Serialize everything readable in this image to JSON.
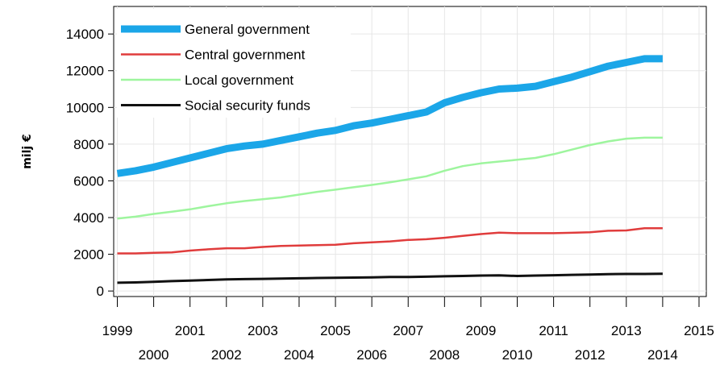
{
  "chart_data": {
    "type": "line",
    "title": "",
    "xlabel": "",
    "ylabel": "milj €",
    "xlim": [
      1998.9,
      2015.2
    ],
    "ylim": [
      -300,
      15500
    ],
    "x_ticks": [
      1999,
      2000,
      2001,
      2002,
      2003,
      2004,
      2005,
      2006,
      2007,
      2008,
      2009,
      2010,
      2011,
      2012,
      2013,
      2014,
      2015
    ],
    "y_ticks": [
      0,
      2000,
      4000,
      6000,
      8000,
      10000,
      12000,
      14000
    ],
    "grid": true,
    "legend_position": "top-left",
    "x": [
      1999.0,
      1999.5,
      2000.0,
      2000.5,
      2001.0,
      2001.5,
      2002.0,
      2002.5,
      2003.0,
      2003.5,
      2004.0,
      2004.5,
      2005.0,
      2005.5,
      2006.0,
      2006.5,
      2007.0,
      2007.5,
      2008.0,
      2008.5,
      2009.0,
      2009.5,
      2010.0,
      2010.5,
      2011.0,
      2011.5,
      2012.0,
      2012.5,
      2013.0,
      2013.5,
      2014.0
    ],
    "series": [
      {
        "name": "General government",
        "color": "#1ba6e8",
        "width": 9,
        "values": [
          6400,
          6550,
          6750,
          7000,
          7250,
          7500,
          7750,
          7900,
          8000,
          8200,
          8400,
          8600,
          8750,
          9000,
          9150,
          9350,
          9550,
          9750,
          10250,
          10550,
          10800,
          11000,
          11050,
          11150,
          11400,
          11650,
          11950,
          12250,
          12450,
          12650,
          12650
        ]
      },
      {
        "name": "Central government",
        "color": "#e03c3c",
        "width": 2.5,
        "values": [
          2050,
          2050,
          2080,
          2100,
          2200,
          2270,
          2330,
          2330,
          2400,
          2450,
          2480,
          2500,
          2520,
          2600,
          2650,
          2700,
          2780,
          2820,
          2900,
          3000,
          3100,
          3180,
          3150,
          3150,
          3150,
          3170,
          3200,
          3280,
          3300,
          3420,
          3420
        ]
      },
      {
        "name": "Local government",
        "color": "#9ef59e",
        "width": 2.5,
        "values": [
          3950,
          4050,
          4200,
          4320,
          4450,
          4620,
          4780,
          4900,
          5000,
          5100,
          5250,
          5400,
          5520,
          5650,
          5780,
          5920,
          6080,
          6250,
          6550,
          6800,
          6950,
          7050,
          7150,
          7250,
          7450,
          7700,
          7950,
          8150,
          8300,
          8350,
          8350
        ]
      },
      {
        "name": "Social security funds",
        "color": "#111111",
        "width": 3,
        "values": [
          450,
          470,
          500,
          540,
          570,
          600,
          630,
          650,
          660,
          680,
          690,
          710,
          720,
          730,
          740,
          760,
          760,
          780,
          800,
          820,
          840,
          850,
          820,
          840,
          860,
          880,
          900,
          920,
          930,
          930,
          940
        ]
      }
    ]
  }
}
